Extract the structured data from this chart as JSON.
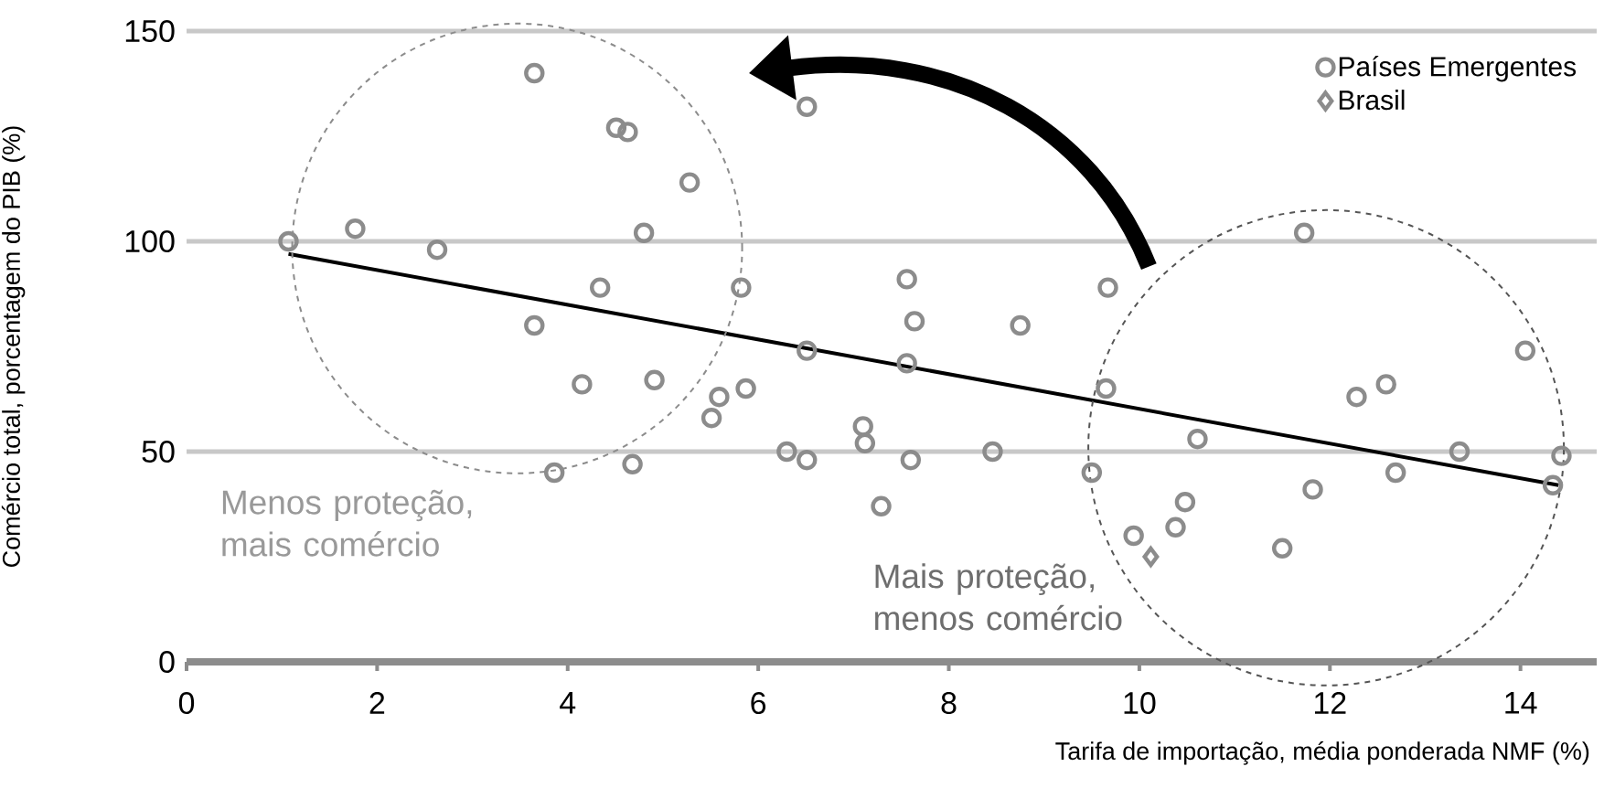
{
  "chart_data": {
    "type": "scatter",
    "xlabel": "Tarifa de importação, média ponderada NMF (%)",
    "ylabel": "Comércio total, porcentagem do PIB (%)",
    "xlim": [
      0,
      14.8
    ],
    "ylim": [
      0,
      150
    ],
    "xticks": [
      0,
      2,
      4,
      6,
      8,
      10,
      12,
      14
    ],
    "yticks": [
      0,
      50,
      100,
      150
    ],
    "grid": "y",
    "legend": "top right",
    "annotations": [
      "Menos proteção, mais comércio",
      "Mais proteção, menos comércio"
    ],
    "series": [
      {
        "name": "Países Emergentes",
        "color": "#8c8c8c",
        "marker": "circle",
        "x": [
          3.65,
          4.51,
          4.63,
          5.28,
          1.07,
          1.77,
          2.63,
          4.8,
          4.34,
          5.82,
          3.65,
          4.15,
          4.91,
          5.59,
          5.87,
          5.51,
          3.86,
          4.68,
          6.51,
          7.56,
          7.64,
          8.75,
          9.67,
          6.51,
          7.56,
          9.65,
          6.3,
          6.51,
          7.1,
          7.12,
          7.6,
          8.46,
          7.29,
          9.5,
          10.61,
          11.73,
          12.28,
          12.59,
          14.05,
          13.36,
          14.43,
          14.34,
          12.69,
          11.82,
          11.5,
          10.48,
          10.38,
          9.94
        ],
        "values": [
          140,
          127,
          126,
          114,
          100,
          103,
          98,
          102,
          89,
          89,
          80,
          66,
          67,
          63,
          65,
          58,
          45,
          47,
          132,
          91,
          81,
          80,
          89,
          74,
          71,
          65,
          50,
          48,
          56,
          52,
          48,
          50,
          37,
          45,
          53,
          102,
          63,
          66,
          74,
          50,
          49,
          42,
          45,
          41,
          27,
          38,
          32,
          30
        ]
      },
      {
        "name": "Brasil",
        "color": "#8c8c8c",
        "marker": "diamond",
        "x": [
          10.12
        ],
        "values": [
          25
        ]
      },
      {
        "type": "line",
        "color": "#000000",
        "marker": "none",
        "x": [
          1.07,
          14.4
        ],
        "values": [
          97,
          42
        ]
      }
    ]
  }
}
